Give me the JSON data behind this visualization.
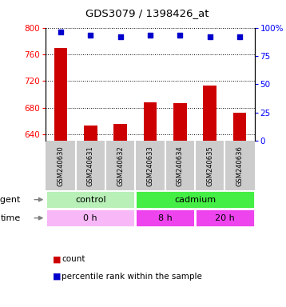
{
  "title": "GDS3079 / 1398426_at",
  "samples": [
    "GSM240630",
    "GSM240631",
    "GSM240632",
    "GSM240633",
    "GSM240634",
    "GSM240635",
    "GSM240636"
  ],
  "counts": [
    770,
    653,
    655,
    688,
    687,
    713,
    672
  ],
  "percentiles": [
    96,
    93,
    92,
    93,
    93,
    92,
    92
  ],
  "ylim_left": [
    630,
    800
  ],
  "ylim_right": [
    0,
    100
  ],
  "yticks_left": [
    640,
    680,
    720,
    760,
    800
  ],
  "yticks_right": [
    0,
    25,
    50,
    75,
    100
  ],
  "bar_color": "#cc0000",
  "dot_color": "#0000cc",
  "control_color": "#b8f0b8",
  "cadmium_color": "#44ee44",
  "time0_color": "#f8b8f8",
  "time8_color": "#ee44ee",
  "time20_color": "#ee44ee",
  "sample_bg": "#cccccc",
  "legend_count_color": "#cc0000",
  "legend_dot_color": "#0000cc"
}
